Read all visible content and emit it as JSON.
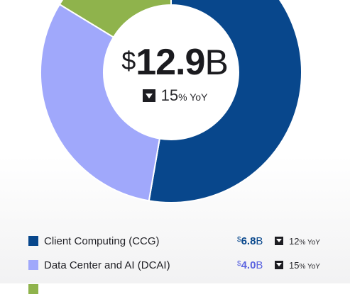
{
  "chart_data": {
    "type": "pie",
    "style": "donut",
    "total": {
      "currency": "$",
      "amount": "12.9",
      "unit": "B",
      "change": "15",
      "change_suffix": "% YoY",
      "direction": "down"
    },
    "segments": [
      {
        "name": "Client Computing (CCG)",
        "value": 6.8,
        "currency": "$",
        "amount": "6.8",
        "unit": "B",
        "change": "12",
        "change_suffix": "% YoY",
        "direction": "down",
        "color": "#08478c"
      },
      {
        "name": "Data Center and AI (DCAI)",
        "value": 4.0,
        "currency": "$",
        "amount": "4.0",
        "unit": "B",
        "change": "15",
        "change_suffix": "% YoY",
        "direction": "down",
        "color": "#a0a8fb"
      },
      {
        "name": "",
        "value": 2.1,
        "color": "#8fb34c"
      }
    ]
  }
}
